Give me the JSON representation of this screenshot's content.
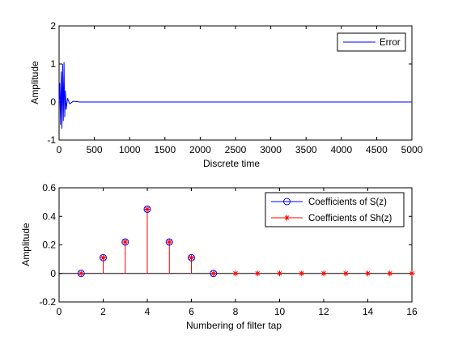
{
  "chart_data": [
    {
      "type": "line",
      "xlabel": "Discrete time",
      "ylabel": "Amplitude",
      "xlim": [
        0,
        5000
      ],
      "ylim": [
        -1,
        2
      ],
      "xticks": [
        "0",
        "500",
        "1000",
        "1500",
        "2000",
        "2500",
        "3000",
        "3500",
        "4000",
        "4500",
        "5000"
      ],
      "yticks": [
        "-1",
        "0",
        "1",
        "2"
      ],
      "legend_position": "top-right",
      "series": [
        {
          "name": "Error",
          "color": "#0000ff",
          "x": [
            0,
            10,
            20,
            30,
            40,
            50,
            60,
            70,
            80,
            90,
            100,
            120,
            150,
            200,
            300,
            500,
            1000,
            2000,
            3000,
            4000,
            5000
          ],
          "y": [
            0,
            0.5,
            -0.6,
            0.8,
            -0.7,
            1.0,
            -0.5,
            1.05,
            -0.4,
            0.3,
            -0.2,
            0.1,
            -0.05,
            0.02,
            0.0,
            0.0,
            0.0,
            0.0,
            0.0,
            0.0,
            0.0
          ]
        }
      ]
    },
    {
      "type": "scatter",
      "xlabel": "Numbering of filter tap",
      "ylabel": "Amplitude",
      "xlim": [
        0,
        16
      ],
      "ylim": [
        -0.2,
        0.6
      ],
      "xticks": [
        "0",
        "2",
        "4",
        "6",
        "8",
        "10",
        "12",
        "14",
        "16"
      ],
      "yticks": [
        "-0.2",
        "0",
        "0.2",
        "0.4",
        "0.6"
      ],
      "legend_position": "top-right",
      "series": [
        {
          "name": "Coefficients of S(z)",
          "color": "#0000ff",
          "marker": "circle",
          "x": [
            1,
            2,
            3,
            4,
            5,
            6,
            7
          ],
          "y": [
            0,
            0.11,
            0.22,
            0.45,
            0.22,
            0.11,
            0
          ]
        },
        {
          "name": "Coefficients of Sh(z)",
          "color": "#ff0000",
          "marker": "star",
          "x": [
            1,
            2,
            3,
            4,
            5,
            6,
            7,
            8,
            9,
            10,
            11,
            12,
            13,
            14,
            15,
            16
          ],
          "y": [
            0,
            0.11,
            0.22,
            0.45,
            0.22,
            0.11,
            0,
            0,
            0,
            0,
            0,
            0,
            0,
            0,
            0,
            0
          ]
        }
      ]
    }
  ]
}
